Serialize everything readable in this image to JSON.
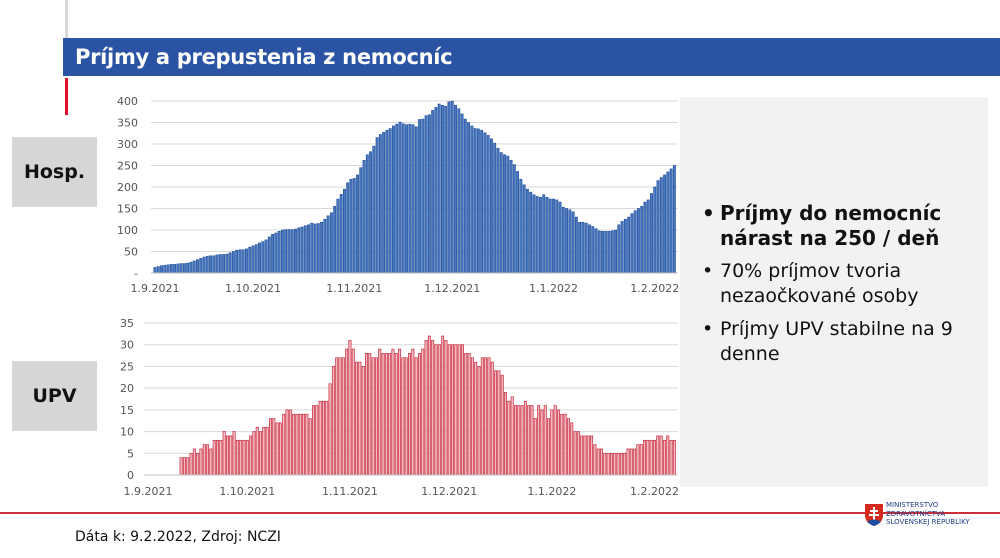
{
  "title": "Príjmy a prepustenia z nemocníc",
  "labels": {
    "hosp": "Hosp.",
    "upv": "UPV"
  },
  "bullets": [
    {
      "text": "Príjmy do nemocníc nárast na 250 / deň",
      "bold": true
    },
    {
      "text": "70% príjmov tvoria nezaočkované osoby",
      "bold": false
    },
    {
      "text": "Príjmy UPV stabilne na 9 denne",
      "bold": false
    }
  ],
  "footer": "Dáta k: 9.2.2022, Zdroj: NCZI",
  "logo": {
    "line1": "MINISTERSTVO",
    "line2": "ZDRAVOTNÍCTVA",
    "line3": "SLOVENSKEJ REPUBLIKY"
  },
  "chart_data": [
    {
      "type": "bar",
      "name": "Hosp.",
      "start_date": "1.9.2021",
      "x_ticks": [
        "1.9.2021",
        "1.10.2021",
        "1.11.2021",
        "1.12.2021",
        "1.1.2022",
        "1.2.2022"
      ],
      "y_ticks": [
        "-",
        "50",
        "100",
        "150",
        "200",
        "250",
        "300",
        "350",
        "400"
      ],
      "ylim": [
        0,
        400
      ],
      "grid": true,
      "color": "#4a78c2",
      "edge_color": "#1f4e99",
      "values": [
        13,
        15,
        17,
        18,
        19,
        20,
        20,
        21,
        22,
        22,
        23,
        25,
        28,
        31,
        34,
        37,
        39,
        40,
        40,
        42,
        43,
        43,
        44,
        47,
        50,
        53,
        54,
        54,
        56,
        60,
        63,
        66,
        70,
        73,
        77,
        84,
        90,
        93,
        97,
        100,
        101,
        101,
        101,
        102,
        105,
        107,
        110,
        112,
        116,
        114,
        115,
        118,
        125,
        133,
        140,
        155,
        172,
        183,
        195,
        210,
        218,
        220,
        228,
        245,
        262,
        275,
        282,
        295,
        315,
        322,
        327,
        332,
        336,
        342,
        346,
        351,
        347,
        345,
        346,
        345,
        340,
        357,
        358,
        366,
        368,
        378,
        385,
        393,
        390,
        388,
        398,
        400,
        390,
        382,
        370,
        358,
        350,
        342,
        336,
        335,
        332,
        326,
        320,
        312,
        302,
        290,
        280,
        275,
        272,
        262,
        252,
        236,
        218,
        205,
        195,
        188,
        182,
        178,
        176,
        182,
        176,
        172,
        172,
        170,
        165,
        153,
        150,
        147,
        142,
        130,
        118,
        118,
        116,
        112,
        108,
        103,
        98,
        97,
        97,
        97,
        98,
        100,
        112,
        120,
        125,
        130,
        138,
        145,
        150,
        155,
        165,
        170,
        185,
        200,
        215,
        222,
        228,
        235,
        242,
        250
      ]
    },
    {
      "type": "bar",
      "name": "UPV",
      "start_date": "1.9.2021",
      "x_ticks": [
        "1.9.2021",
        "1.10.2021",
        "1.11.2021",
        "1.12.2021",
        "1.1.2022",
        "1.2.2022"
      ],
      "y_ticks": [
        "0",
        "5",
        "10",
        "15",
        "20",
        "25",
        "30",
        "35"
      ],
      "ylim": [
        0,
        35
      ],
      "grid": true,
      "color": "#f3b9bd",
      "edge_color": "#c0102a",
      "values": [
        0,
        0,
        0,
        0,
        0,
        0,
        0,
        0,
        0,
        0,
        4,
        4,
        4,
        5,
        6,
        5,
        6,
        7,
        7,
        6,
        8,
        8,
        8,
        10,
        9,
        9,
        10,
        8,
        8,
        8,
        8,
        9,
        10,
        11,
        10,
        11,
        11,
        13,
        13,
        12,
        12,
        14,
        15,
        15,
        14,
        14,
        14,
        14,
        14,
        13,
        16,
        16,
        17,
        17,
        17,
        21,
        25,
        27,
        27,
        27,
        29,
        31,
        29,
        26,
        26,
        25,
        28,
        28,
        27,
        27,
        29,
        28,
        28,
        28,
        29,
        28,
        29,
        27,
        27,
        28,
        29,
        27,
        28,
        29,
        31,
        32,
        31,
        30,
        30,
        32,
        31,
        30,
        30,
        30,
        30,
        30,
        28,
        28,
        27,
        26,
        25,
        27,
        27,
        27,
        26,
        24,
        24,
        23,
        19,
        17,
        18,
        16,
        16,
        16,
        17,
        16,
        16,
        13,
        16,
        15,
        16,
        13,
        15,
        16,
        15,
        14,
        14,
        13,
        12,
        10,
        10,
        9,
        9,
        9,
        9,
        7,
        6,
        6,
        5,
        5,
        5,
        5,
        5,
        5,
        5,
        6,
        6,
        6,
        7,
        7,
        8,
        8,
        8,
        8,
        9,
        9,
        8,
        9,
        8,
        8
      ]
    }
  ]
}
